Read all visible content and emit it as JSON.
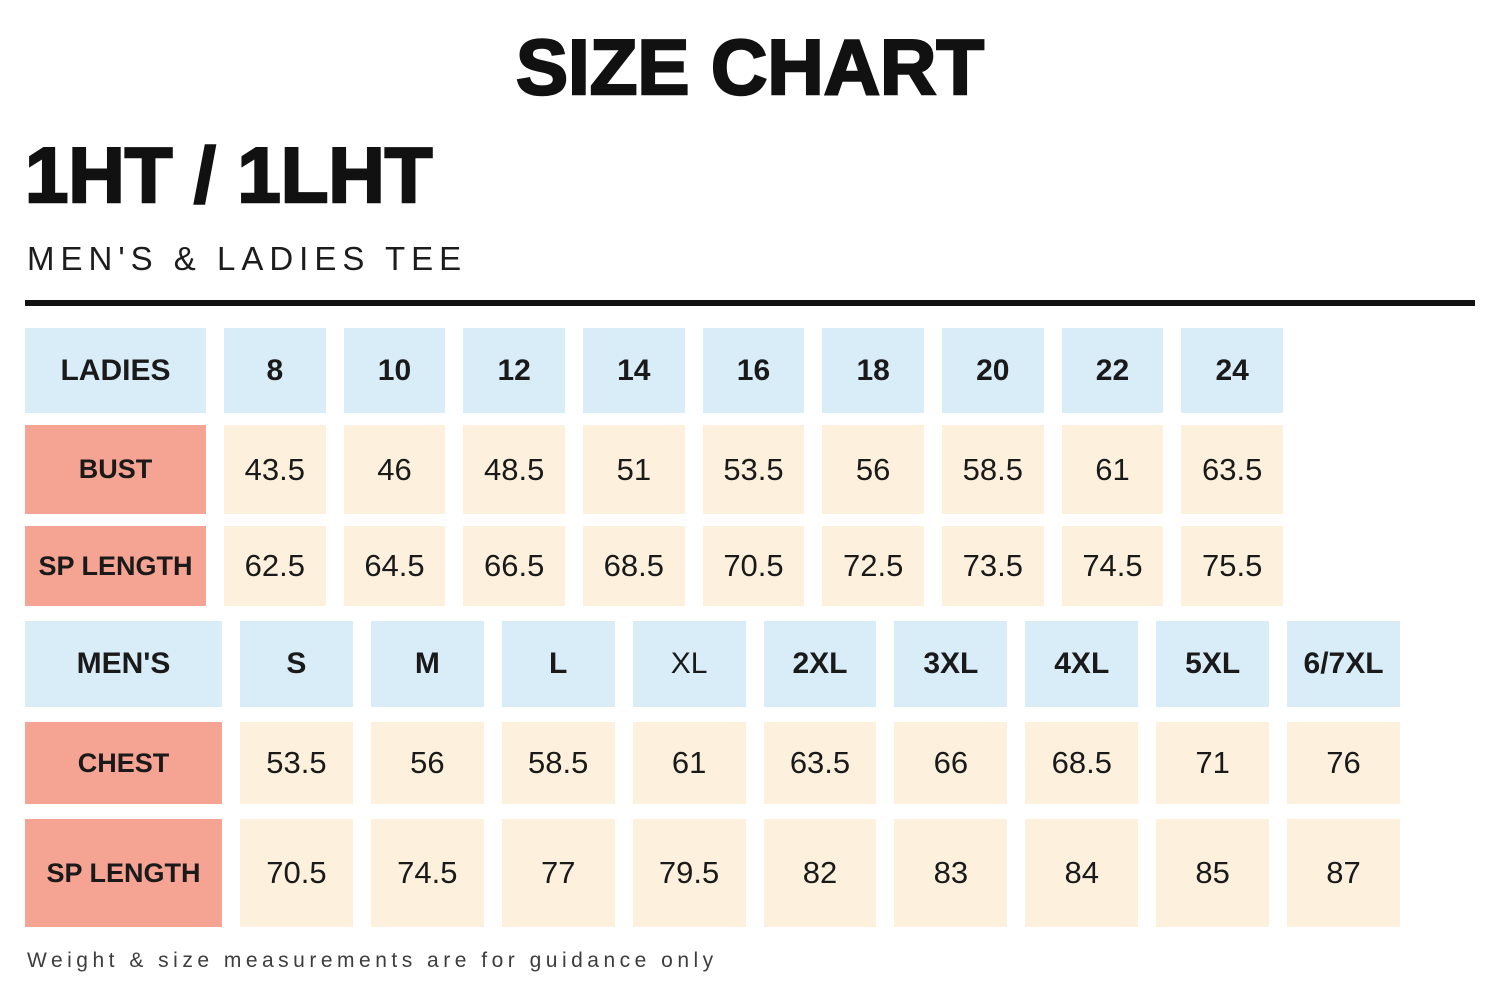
{
  "page": {
    "title": "SIZE CHART",
    "product_code": "1HT / 1LHT",
    "subtitle": "MEN'S & LADIES TEE",
    "footnote": "Weight & size measurements are for guidance only"
  },
  "colors": {
    "size_header_blue": "#d9edf9",
    "row_label_salmon": "#f5a392",
    "value_cream": "#fdf1de",
    "heading_black": "#111111"
  },
  "chart_data": {
    "type": "table",
    "title": "SIZE CHART",
    "subtitle": "1HT / 1LHT MEN'S & LADIES TEE",
    "tables": [
      {
        "name": "ladies",
        "header_label": "LADIES",
        "sizes": [
          "8",
          "10",
          "12",
          "14",
          "16",
          "18",
          "20",
          "22",
          "24"
        ],
        "rows": [
          {
            "label": "BUST",
            "values": [
              43.5,
              46,
              48.5,
              51,
              53.5,
              56,
              58.5,
              61,
              63.5
            ]
          },
          {
            "label": "SP LENGTH",
            "values": [
              62.5,
              64.5,
              66.5,
              68.5,
              70.5,
              72.5,
              73.5,
              74.5,
              75.5
            ]
          }
        ]
      },
      {
        "name": "mens",
        "header_label": "MEN'S",
        "sizes": [
          "S",
          "M",
          "L",
          "XL",
          "2XL",
          "3XL",
          "4XL",
          "5XL",
          "6/7XL"
        ],
        "rows": [
          {
            "label": "CHEST",
            "values": [
              53.5,
              56,
              58.5,
              61,
              63.5,
              66,
              68.5,
              71,
              76
            ]
          },
          {
            "label": "SP LENGTH",
            "values": [
              70.5,
              74.5,
              77,
              79.5,
              82,
              83,
              84,
              85,
              87
            ]
          }
        ]
      }
    ]
  }
}
